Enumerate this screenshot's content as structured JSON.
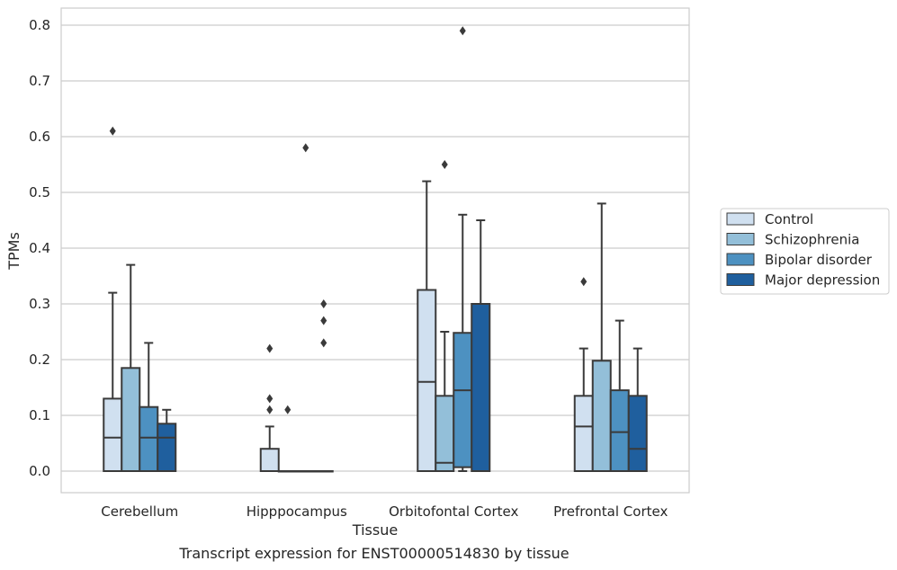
{
  "caption": "Transcript expression for ENST00000514830 by tissue",
  "chart_data": {
    "type": "boxplot",
    "xlabel": "Tissue",
    "ylabel": "TPMs",
    "ylim": [
      -0.04,
      0.83
    ],
    "yticks": [
      0.0,
      0.1,
      0.2,
      0.3,
      0.4,
      0.5,
      0.6,
      0.7,
      0.8
    ],
    "ytick_labels": [
      "0.0",
      "0.1",
      "0.2",
      "0.3",
      "0.4",
      "0.5",
      "0.6",
      "0.7",
      "0.8"
    ],
    "grid": "horizontal",
    "legend_position": "right",
    "categories": [
      "Cerebellum",
      "Hipppocampus",
      "Orbitofontal Cortex",
      "Prefrontal Cortex"
    ],
    "series": [
      {
        "name": "Control",
        "color": "#d0e0f0",
        "boxes": [
          {
            "low": 0.0,
            "q1": 0.0,
            "median": 0.06,
            "q3": 0.13,
            "high": 0.32,
            "outliers": [
              0.61
            ]
          },
          {
            "low": 0.0,
            "q1": 0.0,
            "median": 0.0,
            "q3": 0.04,
            "high": 0.08,
            "outliers": [
              0.22,
              0.13,
              0.11
            ]
          },
          {
            "low": 0.0,
            "q1": 0.0,
            "median": 0.16,
            "q3": 0.325,
            "high": 0.52,
            "outliers": []
          },
          {
            "low": 0.0,
            "q1": 0.0,
            "median": 0.08,
            "q3": 0.135,
            "high": 0.22,
            "outliers": [
              0.34
            ]
          }
        ]
      },
      {
        "name": "Schizophrenia",
        "color": "#93bfd9",
        "boxes": [
          {
            "low": 0.0,
            "q1": 0.0,
            "median": 0.0,
            "q3": 0.185,
            "high": 0.37,
            "outliers": []
          },
          {
            "low": 0.0,
            "q1": 0.0,
            "median": 0.0,
            "q3": 0.0,
            "high": 0.0,
            "outliers": [
              0.11
            ]
          },
          {
            "low": 0.0,
            "q1": 0.0,
            "median": 0.015,
            "q3": 0.135,
            "high": 0.25,
            "outliers": [
              0.55
            ]
          },
          {
            "low": 0.0,
            "q1": 0.0,
            "median": 0.0,
            "q3": 0.198,
            "high": 0.48,
            "outliers": []
          }
        ]
      },
      {
        "name": "Bipolar disorder",
        "color": "#4d91c1",
        "boxes": [
          {
            "low": 0.0,
            "q1": 0.0,
            "median": 0.06,
            "q3": 0.115,
            "high": 0.23,
            "outliers": []
          },
          {
            "low": 0.0,
            "q1": 0.0,
            "median": 0.0,
            "q3": 0.0,
            "high": 0.0,
            "outliers": [
              0.58
            ]
          },
          {
            "low": 0.0,
            "q1": 0.007,
            "median": 0.145,
            "q3": 0.248,
            "high": 0.46,
            "outliers": [
              0.79
            ]
          },
          {
            "low": 0.0,
            "q1": 0.0,
            "median": 0.07,
            "q3": 0.145,
            "high": 0.27,
            "outliers": []
          }
        ]
      },
      {
        "name": "Major depression",
        "color": "#1f5f9e",
        "boxes": [
          {
            "low": 0.0,
            "q1": 0.0,
            "median": 0.06,
            "q3": 0.085,
            "high": 0.11,
            "outliers": []
          },
          {
            "low": 0.0,
            "q1": 0.0,
            "median": 0.0,
            "q3": 0.0,
            "high": 0.0,
            "outliers": [
              0.3,
              0.27,
              0.23
            ]
          },
          {
            "low": 0.0,
            "q1": 0.0,
            "median": 0.3,
            "q3": 0.3,
            "high": 0.45,
            "outliers": []
          },
          {
            "low": 0.0,
            "q1": 0.0,
            "median": 0.04,
            "q3": 0.135,
            "high": 0.22,
            "outliers": []
          }
        ]
      }
    ]
  }
}
